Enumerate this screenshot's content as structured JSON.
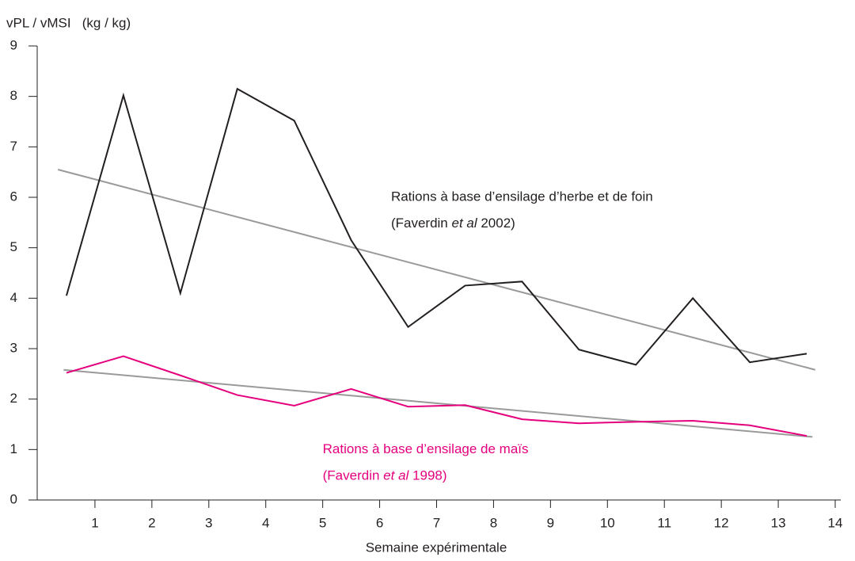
{
  "chart_data": {
    "type": "line",
    "y_label": "vPL / vMSI   (kg / kg)",
    "x_label": "Semaine expérimentale",
    "xlim": [
      0,
      14
    ],
    "xticks": [
      1,
      2,
      3,
      4,
      5,
      6,
      7,
      8,
      9,
      10,
      11,
      12,
      13,
      14
    ],
    "ylim": [
      0,
      9
    ],
    "yticks": [
      0,
      1,
      2,
      3,
      4,
      5,
      6,
      7,
      8,
      9
    ],
    "series": [
      {
        "color": "#231f20",
        "x": [
          0.5,
          1.5,
          2.5,
          3.5,
          4.5,
          5.5,
          6.5,
          7.5,
          8.5,
          9.5,
          10.5,
          11.5,
          12.5,
          13.5
        ],
        "values": [
          4.05,
          8.02,
          4.1,
          8.15,
          7.52,
          5.15,
          3.43,
          4.25,
          4.33,
          2.98,
          2.68,
          4.0,
          2.73,
          2.9
        ]
      },
      {
        "color": "#e5007e",
        "x": [
          0.5,
          1.5,
          2.5,
          3.5,
          4.5,
          5.5,
          6.5,
          7.5,
          8.5,
          9.5,
          10.5,
          11.5,
          12.5,
          13.5
        ],
        "values": [
          2.52,
          2.85,
          2.47,
          2.08,
          1.87,
          2.2,
          1.85,
          1.88,
          1.6,
          1.52,
          1.55,
          1.57,
          1.48,
          1.27
        ]
      },
      {
        "color": "#9a9a9a",
        "x": [
          0.35,
          13.65
        ],
        "values": [
          6.55,
          2.58
        ]
      },
      {
        "color": "#9a9a9a",
        "x": [
          0.45,
          13.6
        ],
        "values": [
          2.58,
          1.25
        ]
      }
    ],
    "annotations": [
      {
        "color": "#231f20",
        "x": 6.2,
        "y": 6.0,
        "text": "Rations à base d’ensilage d’herbe et de foin",
        "source_parts": [
          "(Faverdin ",
          "et al",
          " 2002)"
        ]
      },
      {
        "color": "#e5007e",
        "x": 5.0,
        "y": 1.0,
        "text": "Rations à base d’ensilage de maïs",
        "source_parts": [
          "(Faverdin ",
          "et al",
          " 1998)"
        ]
      }
    ]
  }
}
